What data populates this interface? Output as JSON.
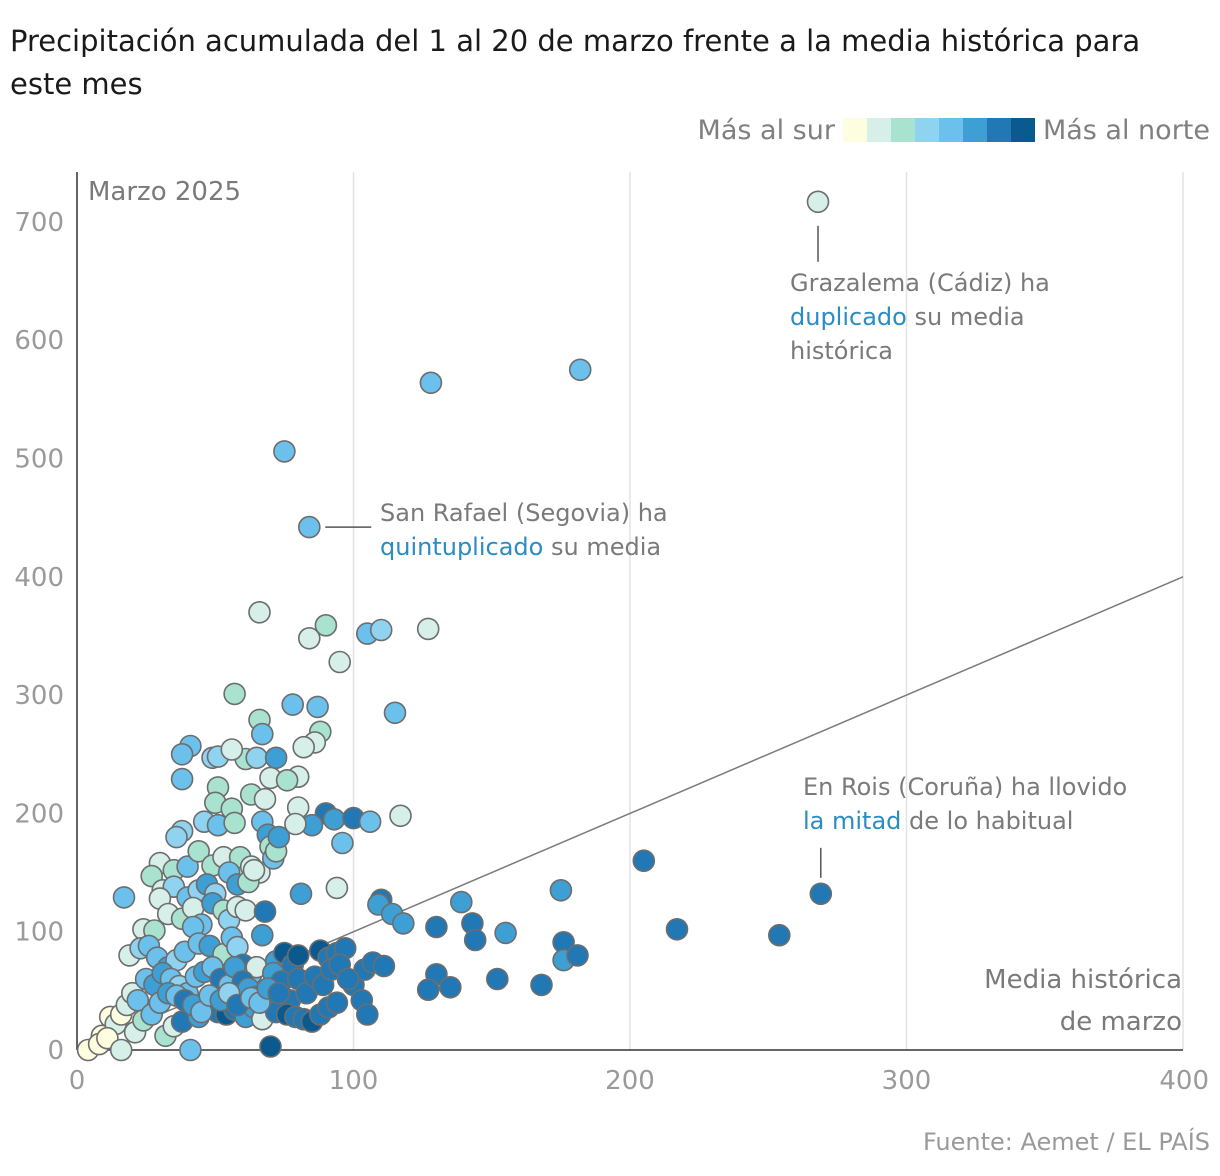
{
  "title": "Precipitación acumulada del 1 al 20 de marzo frente a la media histórica para este mes",
  "legend": {
    "left_label": "Más al sur",
    "right_label": "Más al norte",
    "colors": [
      "#fdfde0",
      "#d6efe8",
      "#a9e3cf",
      "#8fd3f0",
      "#6cc0ec",
      "#3d9fd3",
      "#2178b4",
      "#0a5a8f"
    ]
  },
  "source": "Fuente: Aemet / EL PAÍS",
  "chart_data": {
    "type": "scatter",
    "panel_label": "Marzo 2025",
    "xlabel": [
      "Media histórica",
      "de marzo"
    ],
    "ylabel": "",
    "xlim": [
      0,
      400
    ],
    "ylim": [
      0,
      740
    ],
    "x_ticks": [
      0,
      100,
      200,
      300,
      400
    ],
    "y_ticks": [
      0,
      100,
      200,
      300,
      400,
      500,
      600,
      700
    ],
    "grid": "vertical",
    "reference_line": {
      "type": "y_equals_x",
      "from": [
        0,
        0
      ],
      "to": [
        400,
        400
      ]
    },
    "color_encoding": "latitude: 0 = más al sur, 7 = más al norte",
    "series": [
      {
        "points": [
          [
            268,
            717,
            1
          ],
          [
            128,
            564,
            4
          ],
          [
            182,
            575,
            4
          ],
          [
            75,
            506,
            4
          ],
          [
            84,
            442,
            4
          ],
          [
            66,
            370,
            1
          ],
          [
            90,
            359,
            2
          ],
          [
            84,
            348,
            1
          ],
          [
            95,
            328,
            1
          ],
          [
            105,
            352,
            4
          ],
          [
            110,
            355,
            3
          ],
          [
            127,
            356,
            1
          ],
          [
            57,
            301,
            2
          ],
          [
            78,
            292,
            4
          ],
          [
            87,
            290,
            4
          ],
          [
            115,
            285,
            4
          ],
          [
            66,
            279,
            2
          ],
          [
            88,
            269,
            2
          ],
          [
            86,
            260,
            1
          ],
          [
            82,
            256,
            1
          ],
          [
            67,
            267,
            4
          ],
          [
            61,
            246,
            2
          ],
          [
            65,
            247,
            3
          ],
          [
            41,
            257,
            4
          ],
          [
            38,
            250,
            4
          ],
          [
            49,
            247,
            3
          ],
          [
            51,
            248,
            3
          ],
          [
            56,
            254,
            1
          ],
          [
            70,
            230,
            1
          ],
          [
            72,
            247,
            5
          ],
          [
            38,
            229,
            4
          ],
          [
            51,
            222,
            2
          ],
          [
            63,
            216,
            2
          ],
          [
            68,
            212,
            1
          ],
          [
            80,
            231,
            1
          ],
          [
            76,
            228,
            2
          ],
          [
            90,
            200,
            6
          ],
          [
            50,
            209,
            2
          ],
          [
            56,
            204,
            2
          ],
          [
            80,
            205,
            1
          ],
          [
            85,
            190,
            5
          ],
          [
            79,
            191,
            1
          ],
          [
            93,
            195,
            5
          ],
          [
            38,
            185,
            3
          ],
          [
            36,
            180,
            3
          ],
          [
            46,
            193,
            3
          ],
          [
            51,
            190,
            4
          ],
          [
            57,
            192,
            2
          ],
          [
            67,
            193,
            4
          ],
          [
            69,
            182,
            5
          ],
          [
            100,
            196,
            6
          ],
          [
            106,
            193,
            4
          ],
          [
            117,
            198,
            1
          ],
          [
            96,
            175,
            4
          ],
          [
            30,
            158,
            1
          ],
          [
            35,
            152,
            2
          ],
          [
            40,
            155,
            4
          ],
          [
            44,
            168,
            2
          ],
          [
            49,
            156,
            2
          ],
          [
            53,
            163,
            1
          ],
          [
            57,
            149,
            1
          ],
          [
            59,
            163,
            2
          ],
          [
            63,
            155,
            1
          ],
          [
            66,
            150,
            1
          ],
          [
            70,
            172,
            2
          ],
          [
            71,
            162,
            4
          ],
          [
            72,
            168,
            2
          ],
          [
            73,
            180,
            5
          ],
          [
            17,
            129,
            4
          ],
          [
            27,
            147,
            2
          ],
          [
            31,
            135,
            1
          ],
          [
            35,
            138,
            3
          ],
          [
            40,
            129,
            4
          ],
          [
            44,
            135,
            3
          ],
          [
            47,
            140,
            5
          ],
          [
            50,
            132,
            3
          ],
          [
            55,
            150,
            4
          ],
          [
            58,
            140,
            5
          ],
          [
            62,
            142,
            2
          ],
          [
            64,
            152,
            1
          ],
          [
            94,
            137,
            1
          ],
          [
            81,
            132,
            5
          ],
          [
            24,
            102,
            1
          ],
          [
            28,
            101,
            2
          ],
          [
            30,
            128,
            1
          ],
          [
            33,
            115,
            1
          ],
          [
            38,
            111,
            2
          ],
          [
            42,
            120,
            1
          ],
          [
            45,
            106,
            4
          ],
          [
            49,
            124,
            5
          ],
          [
            53,
            118,
            2
          ],
          [
            55,
            110,
            3
          ],
          [
            58,
            121,
            1
          ],
          [
            61,
            118,
            1
          ],
          [
            67,
            97,
            5
          ],
          [
            68,
            117,
            6
          ],
          [
            110,
            127,
            6
          ],
          [
            109,
            123,
            5
          ],
          [
            114,
            115,
            5
          ],
          [
            118,
            107,
            5
          ],
          [
            139,
            125,
            5
          ],
          [
            143,
            107,
            6
          ],
          [
            130,
            104,
            6
          ],
          [
            144,
            93,
            6
          ],
          [
            155,
            99,
            5
          ],
          [
            175,
            135,
            5
          ],
          [
            205,
            160,
            6
          ],
          [
            176,
            91,
            6
          ],
          [
            269,
            132,
            6
          ],
          [
            217,
            102,
            6
          ],
          [
            254,
            97,
            6
          ],
          [
            19,
            80,
            1
          ],
          [
            23,
            86,
            3
          ],
          [
            26,
            88,
            4
          ],
          [
            29,
            78,
            4
          ],
          [
            33,
            70,
            5
          ],
          [
            36,
            76,
            3
          ],
          [
            39,
            83,
            4
          ],
          [
            42,
            104,
            4
          ],
          [
            44,
            90,
            4
          ],
          [
            48,
            88,
            5
          ],
          [
            53,
            81,
            2
          ],
          [
            56,
            95,
            4
          ],
          [
            58,
            87,
            3
          ],
          [
            60,
            72,
            6
          ],
          [
            63,
            64,
            4
          ],
          [
            65,
            70,
            1
          ],
          [
            72,
            75,
            5
          ],
          [
            75,
            82,
            7
          ],
          [
            78,
            72,
            6
          ],
          [
            80,
            80,
            7
          ],
          [
            88,
            84,
            7
          ],
          [
            91,
            78,
            6
          ],
          [
            94,
            82,
            6
          ],
          [
            97,
            86,
            6
          ],
          [
            100,
            55,
            6
          ],
          [
            104,
            68,
            6
          ],
          [
            107,
            74,
            6
          ],
          [
            111,
            71,
            6
          ],
          [
            176,
            76,
            5
          ],
          [
            181,
            80,
            6
          ],
          [
            130,
            64,
            6
          ],
          [
            127,
            51,
            6
          ],
          [
            135,
            53,
            6
          ],
          [
            152,
            60,
            6
          ],
          [
            168,
            55,
            6
          ],
          [
            9,
            12,
            0
          ],
          [
            12,
            28,
            0
          ],
          [
            14,
            22,
            1
          ],
          [
            16,
            30,
            0
          ],
          [
            18,
            38,
            1
          ],
          [
            20,
            48,
            1
          ],
          [
            22,
            42,
            4
          ],
          [
            25,
            60,
            4
          ],
          [
            28,
            55,
            5
          ],
          [
            31,
            65,
            5
          ],
          [
            34,
            60,
            4
          ],
          [
            37,
            54,
            3
          ],
          [
            40,
            48,
            4
          ],
          [
            43,
            62,
            4
          ],
          [
            46,
            66,
            5
          ],
          [
            49,
            70,
            4
          ],
          [
            52,
            60,
            6
          ],
          [
            55,
            55,
            4
          ],
          [
            57,
            70,
            5
          ],
          [
            60,
            58,
            6
          ],
          [
            62,
            52,
            5
          ],
          [
            65,
            45,
            6
          ],
          [
            68,
            48,
            5
          ],
          [
            71,
            65,
            5
          ],
          [
            74,
            58,
            6
          ],
          [
            77,
            42,
            6
          ],
          [
            80,
            60,
            6
          ],
          [
            83,
            48,
            6
          ],
          [
            86,
            62,
            6
          ],
          [
            89,
            55,
            6
          ],
          [
            92,
            68,
            6
          ],
          [
            95,
            72,
            6
          ],
          [
            98,
            60,
            6
          ],
          [
            103,
            42,
            6
          ],
          [
            105,
            30,
            6
          ],
          [
            4,
            0,
            0
          ],
          [
            8,
            5,
            0
          ],
          [
            11,
            10,
            0
          ],
          [
            16,
            0,
            1
          ],
          [
            21,
            15,
            1
          ],
          [
            24,
            25,
            2
          ],
          [
            27,
            30,
            4
          ],
          [
            32,
            12,
            2
          ],
          [
            35,
            20,
            1
          ],
          [
            38,
            24,
            6
          ],
          [
            41,
            0,
            4
          ],
          [
            44,
            28,
            5
          ],
          [
            47,
            36,
            5
          ],
          [
            51,
            32,
            6
          ],
          [
            54,
            30,
            7
          ],
          [
            57,
            34,
            6
          ],
          [
            61,
            28,
            5
          ],
          [
            64,
            36,
            5
          ],
          [
            67,
            26,
            1
          ],
          [
            70,
            3,
            7
          ],
          [
            72,
            32,
            6
          ],
          [
            76,
            30,
            7
          ],
          [
            79,
            28,
            6
          ],
          [
            82,
            26,
            6
          ],
          [
            85,
            24,
            7
          ],
          [
            88,
            30,
            6
          ],
          [
            91,
            36,
            6
          ],
          [
            94,
            40,
            6
          ],
          [
            30,
            40,
            4
          ],
          [
            33,
            48,
            5
          ],
          [
            36,
            46,
            4
          ],
          [
            39,
            42,
            6
          ],
          [
            42,
            38,
            5
          ],
          [
            45,
            32,
            4
          ],
          [
            48,
            46,
            4
          ],
          [
            52,
            42,
            5
          ],
          [
            55,
            48,
            3
          ],
          [
            58,
            38,
            6
          ],
          [
            63,
            44,
            4
          ],
          [
            66,
            40,
            4
          ],
          [
            69,
            52,
            5
          ],
          [
            73,
            48,
            6
          ]
        ]
      }
    ],
    "annotations": [
      {
        "pre": "Grazalema (Cádiz) ha",
        "highlight": "duplicado",
        "post": "su media",
        "extra": "histórica",
        "point": [
          268,
          717
        ]
      },
      {
        "pre": "San Rafael (Segovia) ha",
        "highlight": "quintuplicado",
        "post": "su media",
        "extra": "",
        "point": [
          84,
          442
        ]
      },
      {
        "pre": "En Rois (Coruña) ha llovido",
        "highlight": "la mitad",
        "post": "de lo habitual",
        "extra": "",
        "point": [
          269,
          132
        ]
      }
    ]
  }
}
